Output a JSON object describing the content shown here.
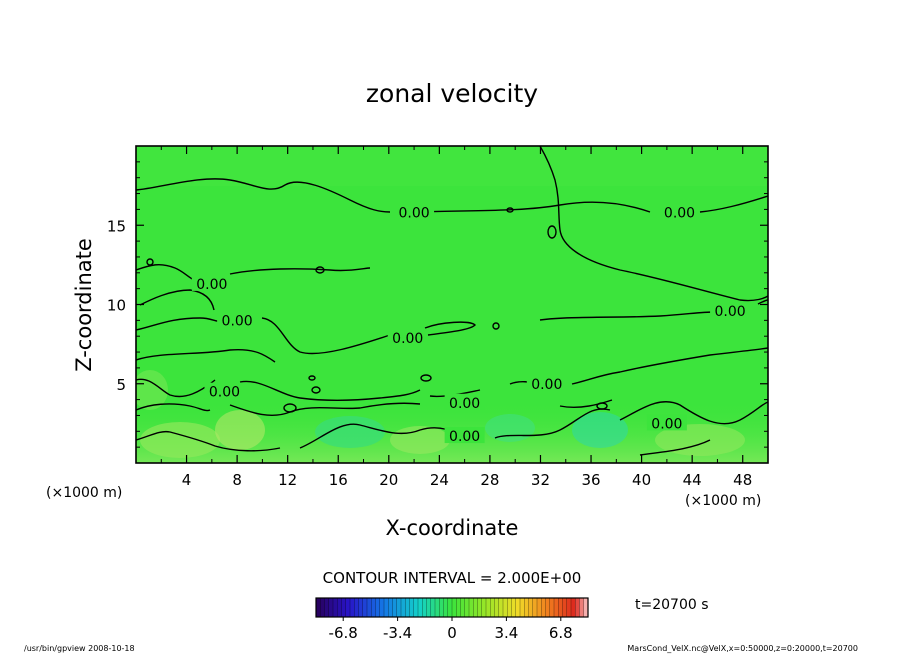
{
  "chart_data": {
    "type": "heatmap",
    "title": "zonal velocity",
    "xlabel": "X-coordinate",
    "ylabel": "Z-coordinate",
    "xunit": "(×1000 m)",
    "yunit": "(×1000 m)",
    "xlim": [
      0,
      50
    ],
    "ylim": [
      0,
      20
    ],
    "xticks": [
      4,
      8,
      12,
      16,
      20,
      24,
      28,
      32,
      36,
      40,
      44,
      48
    ],
    "yticks": [
      5,
      10,
      15
    ],
    "contour_labels": [
      {
        "text": "0.00",
        "x": 22,
        "z": 15.8
      },
      {
        "text": "0.00",
        "x": 43,
        "z": 15.8
      },
      {
        "text": "0.00",
        "x": 6,
        "z": 11.3
      },
      {
        "text": "0.00",
        "x": 8,
        "z": 9.0
      },
      {
        "text": "0.00",
        "x": 21.5,
        "z": 7.9
      },
      {
        "text": "0.00",
        "x": 47,
        "z": 9.6
      },
      {
        "text": "0.00",
        "x": 7,
        "z": 4.5
      },
      {
        "text": "0.00",
        "x": 32.5,
        "z": 5.0
      },
      {
        "text": "0.00",
        "x": 26,
        "z": 3.8
      },
      {
        "text": "0.00",
        "x": 26,
        "z": 1.7
      },
      {
        "text": "0.00",
        "x": 42,
        "z": 2.5
      }
    ],
    "contour_interval": "CONTOUR INTERVAL = 2.000E+00",
    "colorbar": {
      "range": [
        -8.5,
        8.5
      ],
      "tick_labels": [
        "-6.8",
        "-3.4",
        "0",
        "3.4",
        "6.8"
      ],
      "tick_values": [
        -6.8,
        -3.4,
        0,
        3.4,
        6.8
      ]
    },
    "colors": {
      "field": "#3ce43c",
      "frame": "#000000"
    }
  },
  "time_label": "t=20700 s",
  "footer": {
    "left": "/usr/bin/gpview   2008-10-18",
    "right": "MarsCond_VelX.nc@VelX,x=0:50000,z=0:20000,t=20700"
  }
}
